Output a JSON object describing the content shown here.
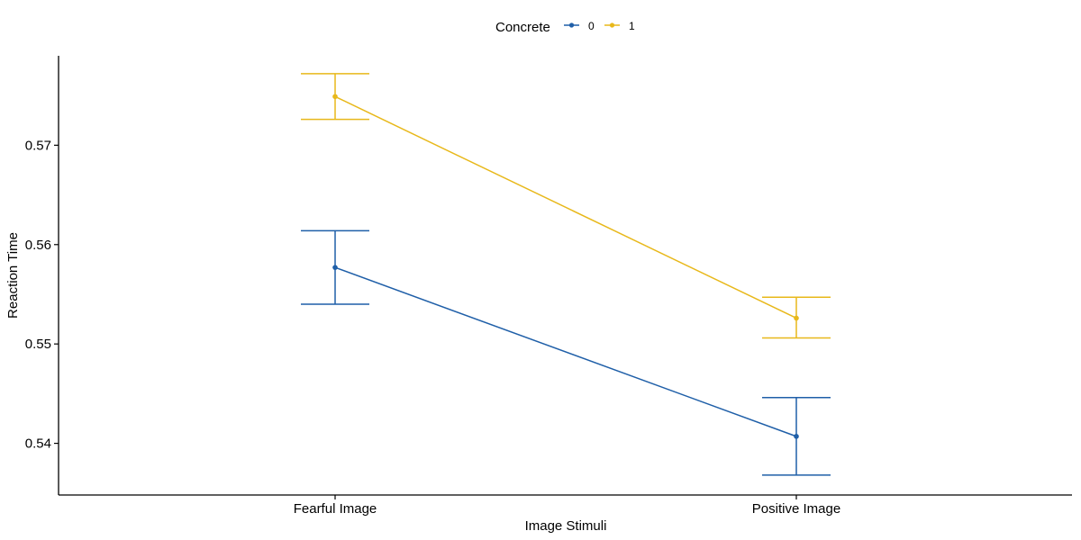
{
  "chart_data": {
    "type": "line",
    "xlabel": "Image Stimuli",
    "ylabel": "Reaction Time",
    "categories": [
      "Fearful Image",
      "Positive Image"
    ],
    "ylim": [
      0.5348,
      0.579
    ],
    "yticks": [
      0.54,
      0.55,
      0.56,
      0.57
    ],
    "ytick_labels": [
      "0.54",
      "0.55",
      "0.56",
      "0.57"
    ],
    "grid": false,
    "legend": {
      "title": "Concrete",
      "position": "top"
    },
    "series": [
      {
        "name": "0",
        "color": "#1f5fa8",
        "values": [
          0.5577,
          0.5407
        ],
        "error_low": [
          0.554,
          0.5368
        ],
        "error_high": [
          0.5614,
          0.5446
        ]
      },
      {
        "name": "1",
        "color": "#e8b81a",
        "values": [
          0.5749,
          0.5526
        ],
        "error_low": [
          0.5726,
          0.5506
        ],
        "error_high": [
          0.5772,
          0.5547
        ]
      }
    ]
  }
}
